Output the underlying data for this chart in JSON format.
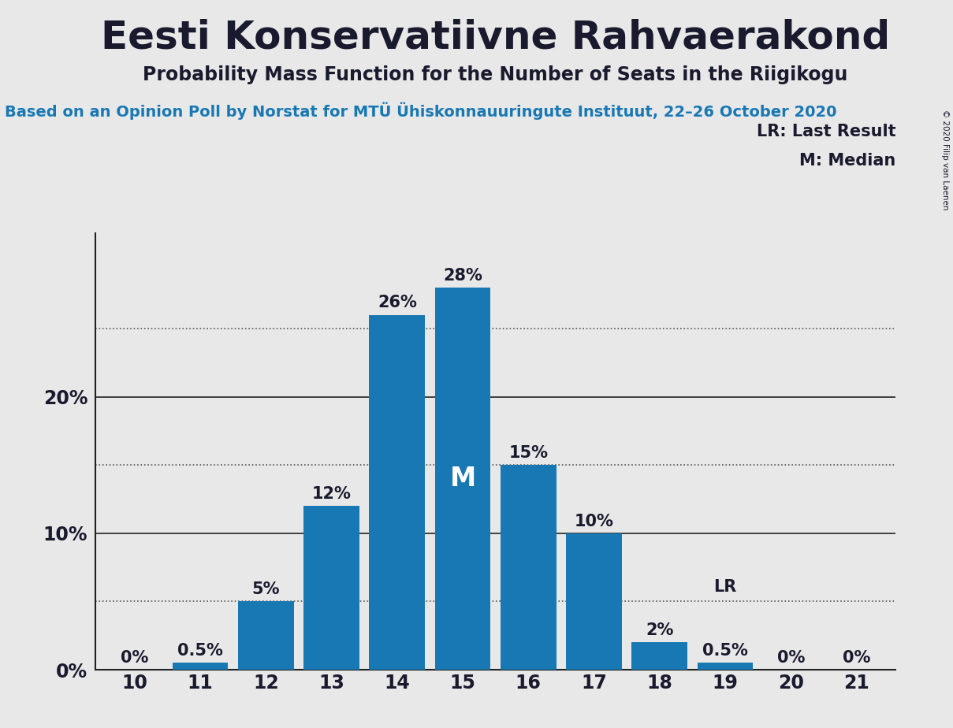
{
  "title": "Eesti Konservatiivne Rahvaerakond",
  "subtitle": "Probability Mass Function for the Number of Seats in the Riigikogu",
  "source_line": "Based on an Opinion Poll by Norstat for MTÜ Ühiskonnauuringute Instituut, 22–26 October 2020",
  "copyright": "© 2020 Filip van Laenen",
  "seats": [
    10,
    11,
    12,
    13,
    14,
    15,
    16,
    17,
    18,
    19,
    20,
    21
  ],
  "probabilities": [
    0.0,
    0.5,
    5.0,
    12.0,
    26.0,
    28.0,
    15.0,
    10.0,
    2.0,
    0.5,
    0.0,
    0.0
  ],
  "bar_color": "#1878b4",
  "median_seat": 15,
  "lr_seat": 19,
  "bg_color": "#e8e8e8",
  "title_fontsize": 36,
  "subtitle_fontsize": 17,
  "source_fontsize": 14,
  "bar_label_fontsize": 15,
  "axis_label_fontsize": 17,
  "ytick_labels": [
    "0%",
    "10%",
    "20%"
  ],
  "ytick_values": [
    0,
    10,
    20
  ],
  "dotted_lines": [
    5,
    15,
    25
  ],
  "ylim": [
    0,
    32
  ]
}
